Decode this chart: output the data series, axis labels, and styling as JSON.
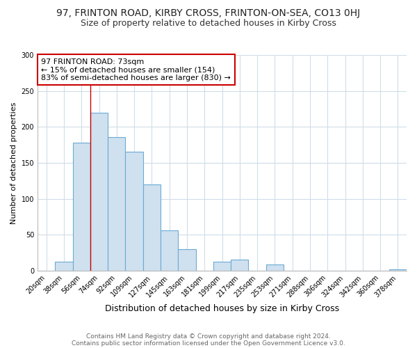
{
  "title_line1": "97, FRINTON ROAD, KIRBY CROSS, FRINTON-ON-SEA, CO13 0HJ",
  "title_line2": "Size of property relative to detached houses in Kirby Cross",
  "xlabel": "Distribution of detached houses by size in Kirby Cross",
  "ylabel": "Number of detached properties",
  "categories": [
    "20sqm",
    "38sqm",
    "56sqm",
    "74sqm",
    "92sqm",
    "109sqm",
    "127sqm",
    "145sqm",
    "163sqm",
    "181sqm",
    "199sqm",
    "217sqm",
    "235sqm",
    "253sqm",
    "271sqm",
    "288sqm",
    "306sqm",
    "324sqm",
    "342sqm",
    "360sqm",
    "378sqm"
  ],
  "values": [
    0,
    12,
    178,
    220,
    186,
    165,
    120,
    56,
    30,
    0,
    12,
    15,
    0,
    9,
    0,
    0,
    0,
    0,
    0,
    0,
    2
  ],
  "bar_color": "#cfe0ef",
  "bar_edge_color": "#6aaad4",
  "vline_x_index": 3,
  "vline_color": "#cc0000",
  "annotation_text": "97 FRINTON ROAD: 73sqm\n← 15% of detached houses are smaller (154)\n83% of semi-detached houses are larger (830) →",
  "annotation_box_color": "white",
  "annotation_box_edge_color": "#cc0000",
  "ylim": [
    0,
    300
  ],
  "yticks": [
    0,
    50,
    100,
    150,
    200,
    250,
    300
  ],
  "footer_line1": "Contains HM Land Registry data © Crown copyright and database right 2024.",
  "footer_line2": "Contains public sector information licensed under the Open Government Licence v3.0.",
  "background_color": "#ffffff",
  "plot_bg_color": "#ffffff",
  "title1_fontsize": 10,
  "title2_fontsize": 9,
  "xlabel_fontsize": 9,
  "ylabel_fontsize": 8,
  "tick_fontsize": 7,
  "footer_fontsize": 6.5,
  "annot_fontsize": 8
}
